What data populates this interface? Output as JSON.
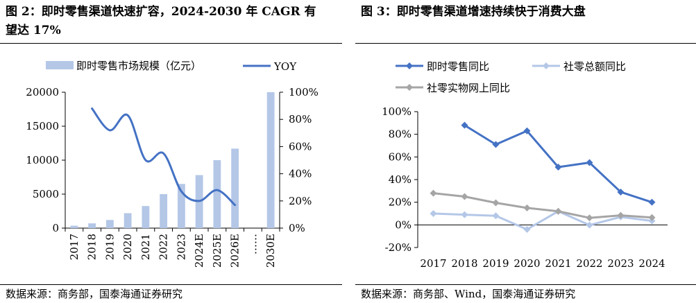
{
  "left": {
    "title_line1": "图 2：即时零售渠道快速扩容，2024-2030 年 CAGR 有",
    "title_line2": "望达 17%",
    "source": "数据来源：商务部，国泰海通证券研究",
    "colors": {
      "bar": "#b4c7e7",
      "line": "#4472c4"
    },
    "chart_data": {
      "type": "bar",
      "categories": [
        "2017",
        "2018",
        "2019",
        "2020",
        "2021",
        "2022",
        "2023",
        "2024E",
        "2025E",
        "2026E",
        "……",
        "2030E"
      ],
      "series": [
        {
          "name": "即时零售市场规模（亿元）",
          "type": "bar",
          "axis": "left",
          "values": [
            350,
            700,
            1200,
            2200,
            3250,
            5000,
            6500,
            7800,
            10000,
            11700,
            null,
            20000
          ]
        },
        {
          "name": "YOY",
          "type": "line",
          "axis": "right",
          "smooth": true,
          "values": [
            null,
            0.88,
            0.72,
            0.83,
            0.5,
            0.55,
            0.27,
            0.2,
            0.28,
            0.17,
            null,
            null
          ]
        }
      ],
      "ylim_left": [
        0,
        20000
      ],
      "yticks_left": [
        "0",
        "5000",
        "10000",
        "15000",
        "20000"
      ],
      "ylim_right": [
        0,
        1.0
      ],
      "yticks_right": [
        "0%",
        "20%",
        "40%",
        "60%",
        "80%",
        "100%"
      ],
      "legend_position": "top"
    }
  },
  "right": {
    "title": "图 3：即时零售渠道增速持续快于消费大盘",
    "source": "数据来源：商务部、Wind，国泰海通证券研究",
    "colors": {
      "instant": "#4472c4",
      "retail": "#b4c7e7",
      "online": "#a5a5a5"
    },
    "chart_data": {
      "type": "line",
      "categories": [
        "2017",
        "2018",
        "2019",
        "2020",
        "2021",
        "2022",
        "2023",
        "2024"
      ],
      "series": [
        {
          "name": "即时零售同比",
          "values": [
            null,
            0.88,
            0.71,
            0.83,
            0.51,
            0.55,
            0.29,
            0.2
          ]
        },
        {
          "name": "社零总额同比",
          "values": [
            0.1,
            0.09,
            0.08,
            -0.04,
            0.12,
            -0.002,
            0.07,
            0.035
          ]
        },
        {
          "name": "社零实物网上同比",
          "values": [
            0.28,
            0.25,
            0.195,
            0.15,
            0.12,
            0.062,
            0.084,
            0.065
          ]
        }
      ],
      "ylim": [
        -0.2,
        1.0
      ],
      "yticks": [
        "-20%",
        "0%",
        "20%",
        "40%",
        "60%",
        "80%",
        "100%"
      ],
      "legend_position": "top"
    }
  }
}
